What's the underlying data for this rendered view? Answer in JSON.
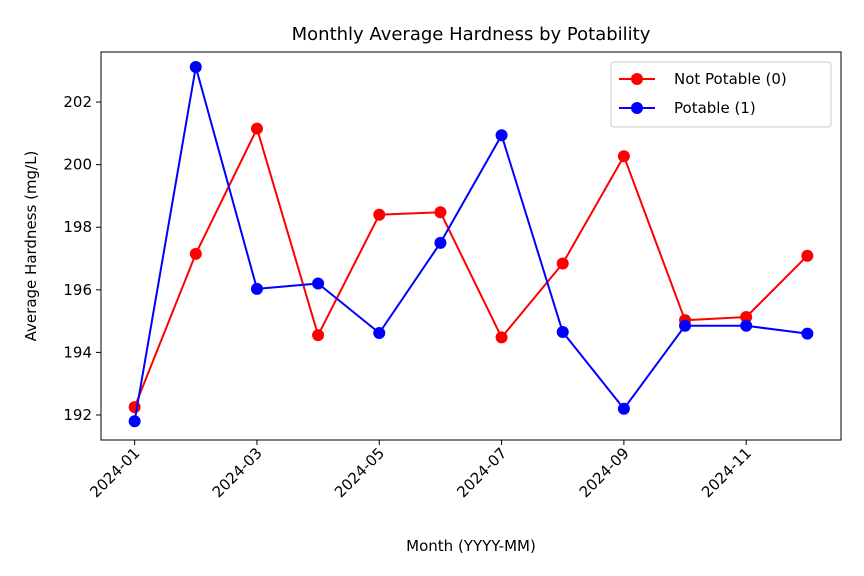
{
  "chart_data": {
    "type": "line",
    "title": "Monthly Average Hardness by Potability",
    "xlabel": "Month (YYYY-MM)",
    "ylabel": "Average Hardness (mg/L)",
    "x": [
      "2024-01",
      "2024-02",
      "2024-03",
      "2024-04",
      "2024-05",
      "2024-06",
      "2024-07",
      "2024-08",
      "2024-09",
      "2024-10",
      "2024-11",
      "2024-12"
    ],
    "x_tick_labels": [
      "2024-01",
      "2024-03",
      "2024-05",
      "2024-07",
      "2024-09",
      "2024-11"
    ],
    "y_ticks": [
      192,
      194,
      196,
      198,
      200,
      202
    ],
    "ylim": [
      191.2,
      203.6
    ],
    "grid": false,
    "legend_position": "top-right",
    "series": [
      {
        "name": "Not Potable (0)",
        "color": "#ff0000",
        "values": [
          192.25,
          197.15,
          201.15,
          194.55,
          198.4,
          198.48,
          194.48,
          196.84,
          200.27,
          195.03,
          195.13,
          197.09
        ]
      },
      {
        "name": "Potable (1)",
        "color": "#0000ff",
        "values": [
          191.8,
          203.12,
          196.03,
          196.2,
          194.62,
          197.5,
          200.94,
          194.65,
          192.2,
          194.85,
          194.85,
          194.6
        ]
      }
    ]
  }
}
